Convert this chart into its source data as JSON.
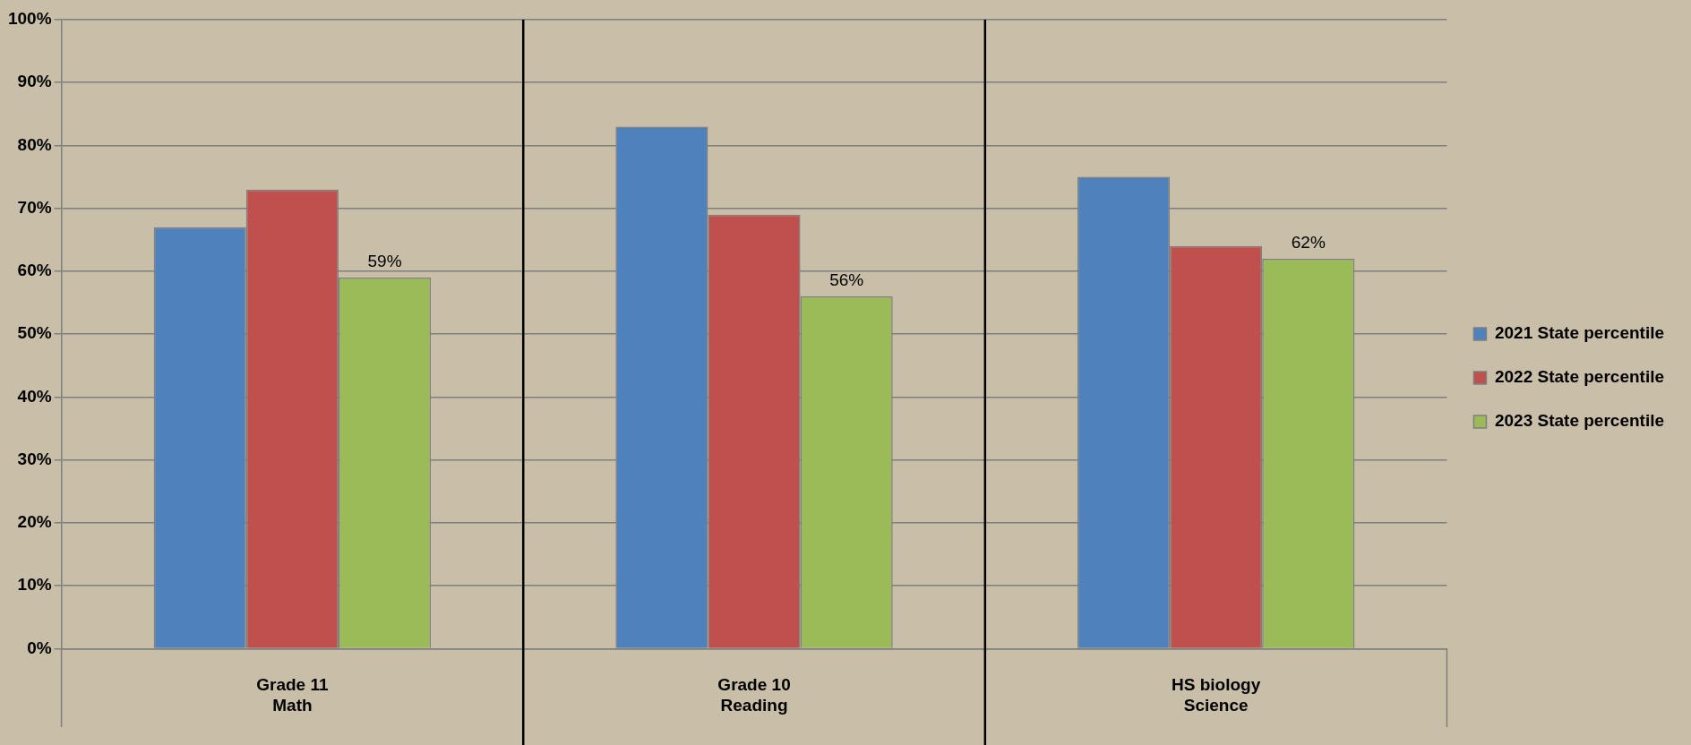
{
  "chart_data": {
    "type": "bar",
    "categories": [
      "Grade 11\nMath",
      "Grade 10\nReading",
      "HS biology\nScience"
    ],
    "series": [
      {
        "name": "2021 State percentile",
        "color": "#4f81bd",
        "values": [
          67,
          83,
          75
        ]
      },
      {
        "name": "2022 State percentile",
        "color": "#c0504d",
        "values": [
          73,
          69,
          64
        ]
      },
      {
        "name": "2023 State percentile",
        "color": "#9bbb59",
        "values": [
          59,
          56,
          62
        ],
        "value_labels": [
          "59%",
          "56%",
          "62%"
        ]
      }
    ],
    "ylim": [
      0,
      100
    ],
    "yticks": [
      {
        "value": 0,
        "label": "0%"
      },
      {
        "value": 10,
        "label": "10%"
      },
      {
        "value": 20,
        "label": "20%"
      },
      {
        "value": 30,
        "label": "30%"
      },
      {
        "value": 40,
        "label": "40%"
      },
      {
        "value": 50,
        "label": "50%"
      },
      {
        "value": 60,
        "label": "60%"
      },
      {
        "value": 70,
        "label": "70%"
      },
      {
        "value": 80,
        "label": "80%"
      },
      {
        "value": 90,
        "label": "90%"
      },
      {
        "value": 100,
        "label": "100%"
      }
    ],
    "grid": "y",
    "legend": "right"
  }
}
